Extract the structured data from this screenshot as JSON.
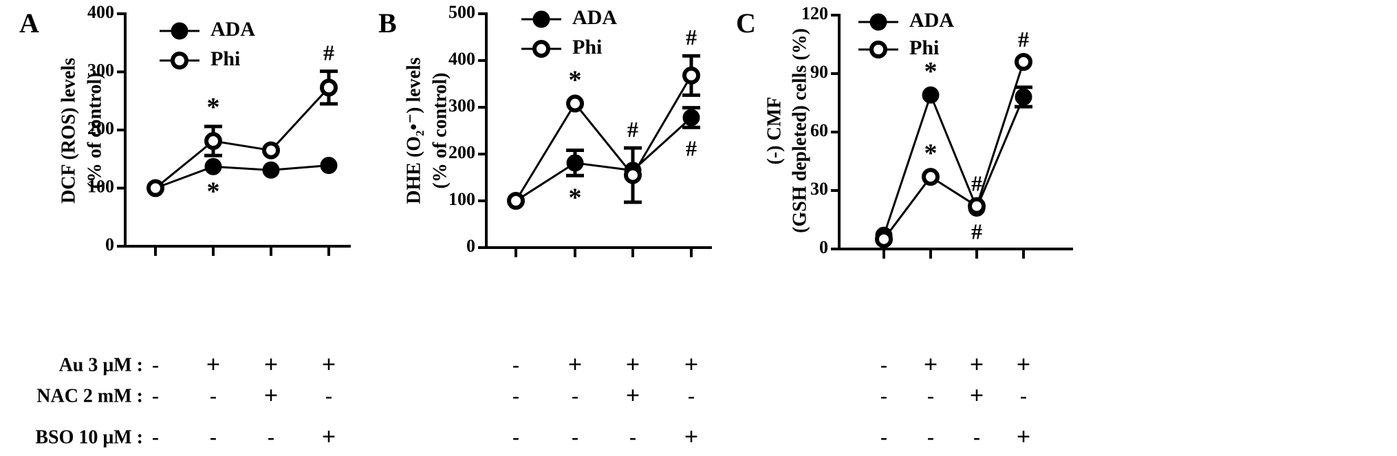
{
  "conditions": {
    "rows": [
      {
        "label": "Au 3 μM :",
        "marks": [
          "-",
          "+",
          "+",
          "+"
        ]
      },
      {
        "label": "NAC 2 mM :",
        "marks": [
          "-",
          "-",
          "+",
          "-"
        ]
      },
      {
        "label": "BSO 10 μM :",
        "marks": [
          "-",
          "-",
          "-",
          "+"
        ]
      }
    ]
  },
  "chart_data": [
    {
      "panel": "A",
      "type": "line",
      "ylabel_lines": [
        "DCF (ROS) levels",
        "(% of control)"
      ],
      "ylim": [
        0,
        400
      ],
      "yticks": [
        0,
        100,
        200,
        300,
        400
      ],
      "x": [
        1,
        2,
        3,
        4
      ],
      "legend": [
        "ADA",
        "Phi"
      ],
      "series": [
        {
          "name": "ADA",
          "marker": "filled",
          "values": [
            100,
            137,
            131,
            139
          ],
          "errors": [
            0,
            0,
            0,
            0
          ],
          "annotations": [
            {
              "index": 1,
              "text": "*",
              "pos": "below"
            }
          ]
        },
        {
          "name": "Phi",
          "marker": "open",
          "values": [
            100,
            181,
            165,
            273
          ],
          "errors": [
            0,
            25,
            0,
            28
          ],
          "annotations": [
            {
              "index": 1,
              "text": "*",
              "pos": "above"
            },
            {
              "index": 3,
              "text": "#",
              "pos": "above"
            }
          ]
        }
      ]
    },
    {
      "panel": "B",
      "type": "line",
      "ylabel_lines": [
        "DHE (O₂•⁻) levels",
        "(% of control)"
      ],
      "ylim": [
        0,
        500
      ],
      "yticks": [
        0,
        100,
        200,
        300,
        400,
        500
      ],
      "x": [
        1,
        2,
        3,
        4
      ],
      "legend": [
        "ADA",
        "Phi"
      ],
      "series": [
        {
          "name": "ADA",
          "marker": "filled",
          "values": [
            100,
            181,
            165,
            278
          ],
          "errors": [
            0,
            27,
            0,
            21
          ],
          "annotations": [
            {
              "index": 1,
              "text": "*",
              "pos": "below"
            },
            {
              "index": 3,
              "text": "#",
              "pos": "below"
            }
          ]
        },
        {
          "name": "Phi",
          "marker": "open",
          "values": [
            100,
            308,
            155,
            368
          ],
          "errors": [
            0,
            0,
            58,
            42
          ],
          "annotations": [
            {
              "index": 1,
              "text": "*",
              "pos": "above"
            },
            {
              "index": 2,
              "text": "#",
              "pos": "above"
            },
            {
              "index": 3,
              "text": "#",
              "pos": "above"
            }
          ]
        }
      ]
    },
    {
      "panel": "C",
      "type": "line",
      "ylabel_lines": [
        "(-) CMF",
        "(GSH depleted) cells (%)"
      ],
      "ylim": [
        0,
        120
      ],
      "yticks": [
        0,
        30,
        60,
        90,
        120
      ],
      "x": [
        1,
        2,
        3,
        4
      ],
      "legend": [
        "ADA",
        "Phi"
      ],
      "series": [
        {
          "name": "ADA",
          "marker": "filled",
          "values": [
            7,
            79,
            21,
            78
          ],
          "errors": [
            0,
            0,
            0,
            5
          ],
          "annotations": [
            {
              "index": 1,
              "text": "*",
              "pos": "above"
            },
            {
              "index": 2,
              "text": "#",
              "pos": "below"
            }
          ]
        },
        {
          "name": "Phi",
          "marker": "open",
          "values": [
            5,
            37,
            22,
            96
          ],
          "errors": [
            0,
            0,
            0,
            0
          ],
          "annotations": [
            {
              "index": 1,
              "text": "*",
              "pos": "above"
            },
            {
              "index": 2,
              "text": "#",
              "pos": "above"
            },
            {
              "index": 3,
              "text": "#",
              "pos": "above"
            }
          ]
        }
      ]
    }
  ]
}
